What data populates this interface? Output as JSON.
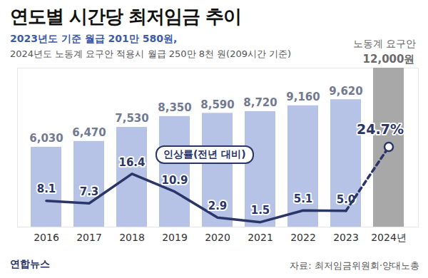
{
  "chart_data": {
    "type": "bar",
    "title": "연도별 시간당 최저임금 추이",
    "subtitle": [
      "2023년도 기준 월급 201만 580원,",
      "2024년도 노동계 요구안 적용시 월급 250만 8천 원(209시간 기준)"
    ],
    "categories": [
      "2016",
      "2017",
      "2018",
      "2019",
      "2020",
      "2021",
      "2022",
      "2023",
      "2024년"
    ],
    "series": [
      {
        "type": "bar",
        "colors": [
          "#b6c2e6",
          "#b6c2e6",
          "#b6c2e6",
          "#b6c2e6",
          "#b6c2e6",
          "#b6c2e6",
          "#b6c2e6",
          "#b6c2e6",
          "#a8a8a8"
        ],
        "values": [
          6030,
          6470,
          7530,
          8350,
          8590,
          8720,
          9160,
          9620,
          12000
        ],
        "value_labels": [
          "6,030",
          "6,470",
          "7,530",
          "8,350",
          "8,590",
          "8,720",
          "9,160",
          "9,620",
          "12,000원"
        ]
      },
      {
        "name": "인상률(전년 대비)",
        "type": "line",
        "axis": "y2",
        "color": "#2b3668",
        "line_style": "solid",
        "values": [
          8.1,
          7.3,
          16.4,
          10.9,
          2.9,
          1.5,
          5.1,
          5.0,
          null
        ],
        "value_labels": [
          "8.1",
          "7.3",
          "16.4",
          "10.9",
          "2.9",
          "1.5",
          "5.1",
          "5.0",
          null
        ]
      },
      {
        "type": "line",
        "axis": "y2",
        "color": "#2b3668",
        "line_style": "dashed",
        "marker": "circle",
        "values": [
          null,
          null,
          null,
          null,
          null,
          null,
          null,
          5.0,
          24.7
        ],
        "value_labels": [
          null,
          null,
          null,
          null,
          null,
          null,
          null,
          null,
          "24.7%"
        ]
      }
    ],
    "ylim": [
      0,
      12000
    ],
    "y2lim": [
      0,
      49
    ],
    "tick_labels": "x",
    "data_labels": true,
    "annotations": [
      {
        "text": "노동계 요구안",
        "category": "2024년"
      }
    ],
    "source": "자료: 최저임금위원회·양대노총",
    "credit": "연합뉴스"
  }
}
